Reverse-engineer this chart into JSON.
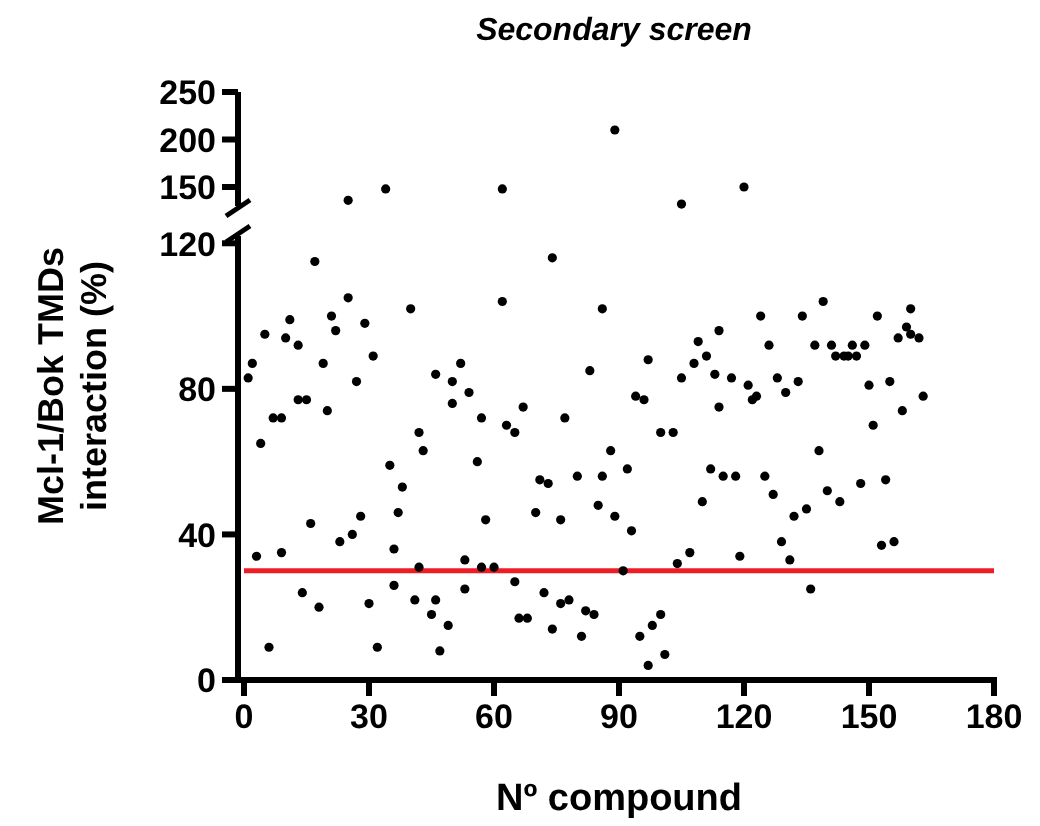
{
  "chart_data": [
    {
      "type": "scatter",
      "title": "Secondary screen",
      "xlim": [
        0,
        180
      ],
      "ylim": [
        130,
        250
      ],
      "yticks": [
        150,
        200,
        250
      ],
      "tick_labels": "y",
      "marker": "circle",
      "series": [
        {
          "color": "#000000",
          "x": [
            25,
            34,
            62,
            89,
            105,
            120
          ],
          "values": [
            136,
            148,
            148,
            210,
            132,
            150
          ]
        }
      ]
    },
    {
      "type": "scatter",
      "xlabel": "Nº compound",
      "ylabel": "Mcl-1/Bok TMDs\ninteraction (%)",
      "xlim": [
        0,
        180
      ],
      "ylim": [
        0,
        122
      ],
      "xticks": [
        0,
        30,
        60,
        90,
        120,
        150,
        180
      ],
      "yticks": [
        0,
        40,
        80,
        120
      ],
      "marker": "circle",
      "ref_lines": [
        {
          "axis": "y",
          "value": 30,
          "color": "#ee1c25"
        }
      ],
      "series": [
        {
          "color": "#000000",
          "x": [
            1,
            2,
            3,
            4,
            5,
            6,
            7,
            9,
            9,
            10,
            11,
            13,
            13,
            14,
            15,
            16,
            17,
            18,
            19,
            20,
            21,
            22,
            23,
            25,
            26,
            27,
            28,
            29,
            30,
            31,
            32,
            35,
            36,
            36,
            37,
            38,
            40,
            41,
            42,
            42,
            43,
            45,
            46,
            46,
            47,
            49,
            50,
            50,
            52,
            53,
            53,
            54,
            56,
            57,
            57,
            58,
            60,
            62,
            63,
            65,
            65,
            66,
            67,
            68,
            70,
            71,
            72,
            73,
            74,
            74,
            76,
            76,
            77,
            78,
            80,
            81,
            82,
            83,
            84,
            85,
            86,
            86,
            88,
            89,
            91,
            92,
            93,
            94,
            95,
            96,
            97,
            97,
            98,
            100,
            100,
            101,
            103,
            104,
            105,
            107,
            108,
            109,
            110,
            111,
            112,
            113,
            114,
            114,
            115,
            117,
            118,
            119,
            121,
            122,
            123,
            124,
            125,
            126,
            127,
            128,
            129,
            130,
            131,
            132,
            133,
            134,
            135,
            136,
            137,
            138,
            139,
            140,
            141,
            142,
            143,
            144,
            145,
            146,
            147,
            148,
            149,
            150,
            151,
            152,
            153,
            154,
            155,
            156,
            157,
            158,
            159,
            160,
            160,
            162,
            163
          ],
          "values": [
            83,
            87,
            34,
            65,
            95,
            9,
            72,
            72,
            35,
            94,
            99,
            92,
            77,
            24,
            77,
            43,
            115,
            20,
            87,
            74,
            100,
            96,
            38,
            105,
            40,
            82,
            45,
            98,
            21,
            89,
            9,
            59,
            36,
            26,
            46,
            53,
            102,
            22,
            68,
            31,
            63,
            18,
            84,
            22,
            8,
            15,
            82,
            76,
            87,
            33,
            25,
            79,
            60,
            31,
            72,
            44,
            31,
            104,
            70,
            27,
            68,
            17,
            75,
            17,
            46,
            55,
            24,
            54,
            14,
            116,
            21,
            44,
            72,
            22,
            56,
            12,
            19,
            85,
            18,
            48,
            102,
            56,
            63,
            45,
            30,
            58,
            41,
            78,
            12,
            77,
            88,
            4,
            15,
            18,
            68,
            7,
            68,
            32,
            83,
            35,
            87,
            93,
            49,
            89,
            58,
            84,
            96,
            75,
            56,
            83,
            56,
            34,
            81,
            77,
            78,
            100,
            56,
            92,
            51,
            83,
            38,
            79,
            33,
            45,
            82,
            100,
            47,
            25,
            92,
            63,
            104,
            52,
            92,
            89,
            49,
            89,
            89,
            92,
            89,
            54,
            92,
            81,
            70,
            100,
            37,
            55,
            82,
            38,
            94,
            74,
            97,
            95,
            102,
            94,
            78
          ]
        }
      ]
    }
  ]
}
